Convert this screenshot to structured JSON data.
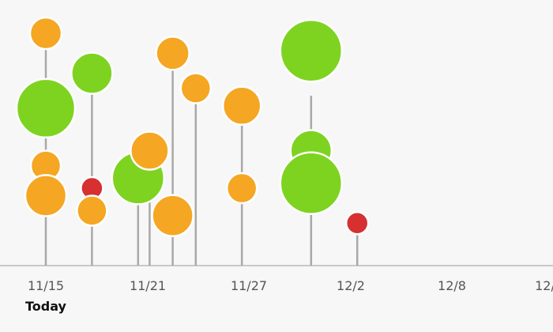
{
  "colors": {
    "background": "#f7f7f7",
    "axis": "#c8c8c8",
    "stem": "#a8a8a8",
    "bubble_outline": "#ffffff",
    "tick_text": "#555555",
    "today_text": "#111111"
  },
  "chart_data": {
    "type": "scatter",
    "style": "lollipop-bubble timeline",
    "title": "",
    "xlabel": "",
    "ylabel": "",
    "grid": false,
    "legend": "none",
    "today_label": "Today",
    "today_x_tick": "11/15",
    "x_ticks": [
      "11/15",
      "11/21",
      "11/27",
      "12/2",
      "12/8",
      "12/"
    ],
    "x_range": [
      "11/13",
      "12/12"
    ],
    "y_range": [
      0,
      10
    ],
    "categories": {
      "orange": "#f5a623",
      "green": "#7ed321",
      "red": "#d63031"
    },
    "stems": [
      {
        "date": "11/15",
        "top": 8.8
      },
      {
        "date": "11/19",
        "top": 7.2
      },
      {
        "date": "11/23",
        "top": 2.6
      },
      {
        "date": "11/24",
        "top": 3.9
      },
      {
        "date": "11/26",
        "top": 8.0
      },
      {
        "date": "11/28",
        "top": 6.6
      },
      {
        "date": "12/2",
        "top": 5.9
      },
      {
        "date": "12/8",
        "top": 6.8
      },
      {
        "date": "12/12",
        "top": 1.6
      }
    ],
    "points": [
      {
        "date": "11/15",
        "y": 9.3,
        "size": 1.0,
        "category": "orange"
      },
      {
        "date": "11/15",
        "y": 6.3,
        "size": 1.85,
        "category": "green"
      },
      {
        "date": "11/15",
        "y": 4.0,
        "size": 0.95,
        "category": "orange"
      },
      {
        "date": "11/15",
        "y": 2.8,
        "size": 1.3,
        "category": "orange"
      },
      {
        "date": "11/19",
        "y": 7.7,
        "size": 1.3,
        "category": "green"
      },
      {
        "date": "11/19",
        "y": 3.1,
        "size": 0.7,
        "category": "red"
      },
      {
        "date": "11/19",
        "y": 2.2,
        "size": 0.95,
        "category": "orange"
      },
      {
        "date": "11/23",
        "y": 3.5,
        "size": 1.65,
        "category": "green"
      },
      {
        "date": "11/24",
        "y": 4.6,
        "size": 1.2,
        "category": "orange"
      },
      {
        "date": "11/26",
        "y": 8.5,
        "size": 1.05,
        "category": "orange"
      },
      {
        "date": "11/26",
        "y": 2.0,
        "size": 1.3,
        "category": "orange"
      },
      {
        "date": "11/28",
        "y": 7.1,
        "size": 0.95,
        "category": "orange"
      },
      {
        "date": "12/2",
        "y": 6.4,
        "size": 1.2,
        "category": "orange"
      },
      {
        "date": "12/2",
        "y": 3.1,
        "size": 0.95,
        "category": "orange"
      },
      {
        "date": "12/8",
        "y": 8.6,
        "size": 1.95,
        "category": "green"
      },
      {
        "date": "12/8",
        "y": 4.6,
        "size": 1.3,
        "category": "green"
      },
      {
        "date": "12/8",
        "y": 3.3,
        "size": 1.95,
        "category": "green"
      },
      {
        "date": "12/12",
        "y": 1.7,
        "size": 0.7,
        "category": "red"
      }
    ]
  }
}
